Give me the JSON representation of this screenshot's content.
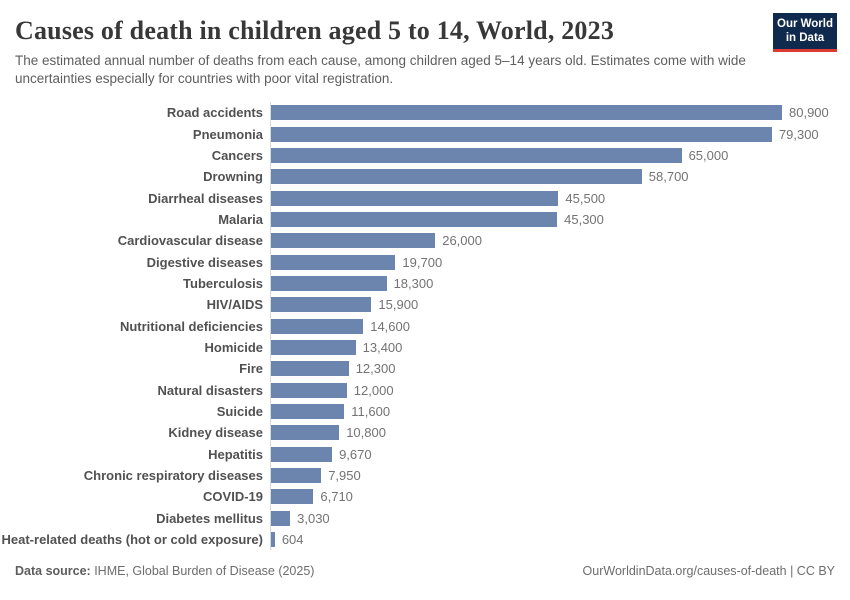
{
  "header": {
    "title": "Causes of death in children aged 5 to 14, World, 2023",
    "subtitle": "The estimated annual number of deaths from each cause, among children aged 5–14 years old. Estimates come with wide uncertainties especially for countries with poor vital registration.",
    "logo": {
      "line1": "Our World",
      "line2": "in Data"
    }
  },
  "chart_data": {
    "type": "bar",
    "orientation": "horizontal",
    "title": "Causes of death in children aged 5 to 14, World, 2023",
    "categories": [
      "Road accidents",
      "Pneumonia",
      "Cancers",
      "Drowning",
      "Diarrheal diseases",
      "Malaria",
      "Cardiovascular disease",
      "Digestive diseases",
      "Tuberculosis",
      "HIV/AIDS",
      "Nutritional deficiencies",
      "Homicide",
      "Fire",
      "Natural disasters",
      "Suicide",
      "Kidney disease",
      "Hepatitis",
      "Chronic respiratory diseases",
      "COVID-19",
      "Diabetes mellitus",
      "Heat-related deaths (hot or cold exposure)"
    ],
    "values": [
      80900,
      79300,
      65000,
      58700,
      45500,
      45300,
      26000,
      19700,
      18300,
      15900,
      14600,
      13400,
      12300,
      12000,
      11600,
      10800,
      9670,
      7950,
      6710,
      3030,
      604
    ],
    "value_labels": [
      "80,900",
      "79,300",
      "65,000",
      "58,700",
      "45,500",
      "45,300",
      "26,000",
      "19,700",
      "18,300",
      "15,900",
      "14,600",
      "13,400",
      "12,300",
      "12,000",
      "11,600",
      "10,800",
      "9,670",
      "7,950",
      "6,710",
      "3,030",
      "604"
    ],
    "xlim": [
      0,
      80900
    ],
    "grid": false,
    "legend": "none",
    "bar_color": "#6c85af",
    "axis_line_color": "#d9d9d9"
  },
  "footer": {
    "datasource_label": "Data source:",
    "datasource_value": " IHME, Global Burden of Disease (2025)",
    "url": "OurWorldinData.org/causes-of-death",
    "license": " | CC BY"
  },
  "colors": {
    "bar": "#6c85af",
    "logo_navy": "#102a4d",
    "logo_red": "#dc3b33",
    "title_text": "#383838",
    "subtitle_text": "#5e5e5e",
    "label_text": "#515151",
    "value_text": "#737373",
    "footer_text": "#6d6d6d"
  }
}
